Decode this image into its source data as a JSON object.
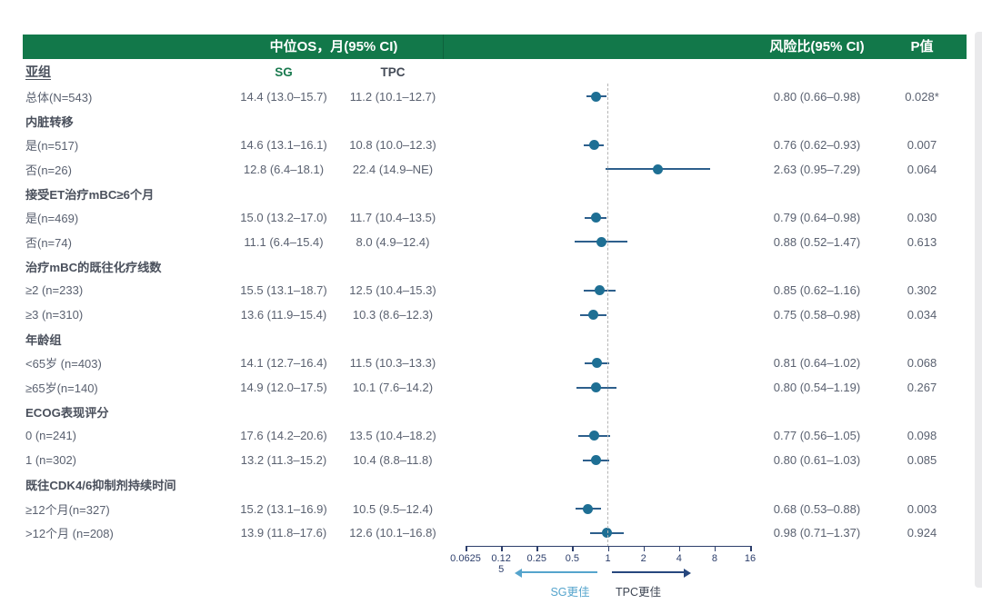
{
  "table_headers": {
    "os_header": "中位OS，月(95% CI)",
    "hr_header": "风险比(95% CI)",
    "p_header": "P值",
    "subgroup_header": "亚组",
    "sg_col": "SG",
    "tpc_col": "TPC"
  },
  "colors": {
    "header_green": "#12784a",
    "sg_label_green": "#1a7a4f",
    "marker_teal": "#1e6f94",
    "ci_line_blue": "#2d5f8c",
    "axis_navy": "#2c3e6b",
    "sg_arrow_light_blue": "#55a4cc",
    "tpc_arrow_dark_blue": "#27477e",
    "body_text": "#5a6170"
  },
  "chart_data": {
    "type": "scatter",
    "subtype": "forest-plot",
    "x_scale": "log2",
    "xlim": [
      0.0625,
      16
    ],
    "x_ticks": [
      0.0625,
      0.125,
      0.25,
      0.5,
      1,
      2,
      4,
      8,
      16
    ],
    "tick_label_lines": [
      [
        "0.0625"
      ],
      [
        "0.12",
        "5"
      ],
      [
        "0.25"
      ],
      [
        "0.5"
      ],
      [
        "1"
      ],
      [
        "2"
      ],
      [
        "4"
      ],
      [
        "8"
      ],
      [
        "16"
      ]
    ],
    "reference_line": 1,
    "legend": {
      "left_arrow": "SG更佳",
      "right_arrow": "TPC更佳"
    },
    "rows": [
      {
        "type": "data",
        "label": "总体(N=543)",
        "sg": "14.4 (13.0–15.7)",
        "tpc": "11.2 (10.1–12.7)",
        "hr": 0.8,
        "lo": 0.66,
        "hi": 0.98,
        "hr_text": "0.80 (0.66–0.98)",
        "p": "0.028*"
      },
      {
        "type": "section",
        "label": "内脏转移"
      },
      {
        "type": "data",
        "label": "是(n=517)",
        "sg": "14.6 (13.1–16.1)",
        "tpc": "10.8 (10.0–12.3)",
        "hr": 0.76,
        "lo": 0.62,
        "hi": 0.93,
        "hr_text": "0.76 (0.62–0.93)",
        "p": "0.007"
      },
      {
        "type": "data",
        "label": "否(n=26)",
        "sg": "12.8 (6.4–18.1)",
        "tpc": "22.4 (14.9–NE)",
        "hr": 2.63,
        "lo": 0.95,
        "hi": 7.29,
        "hr_text": "2.63 (0.95–7.29)",
        "p": "0.064"
      },
      {
        "type": "section",
        "label": "接受ET治疗mBC≥6个月"
      },
      {
        "type": "data",
        "label": "是(n=469)",
        "sg": "15.0 (13.2–17.0)",
        "tpc": "11.7 (10.4–13.5)",
        "hr": 0.79,
        "lo": 0.64,
        "hi": 0.98,
        "hr_text": "0.79 (0.64–0.98)",
        "p": "0.030"
      },
      {
        "type": "data",
        "label": "否(n=74)",
        "sg": "11.1 (6.4–15.4)",
        "tpc": "8.0 (4.9–12.4)",
        "hr": 0.88,
        "lo": 0.52,
        "hi": 1.47,
        "hr_text": "0.88 (0.52–1.47)",
        "p": "0.613"
      },
      {
        "type": "section",
        "label": "治疗mBC的既往化疗线数"
      },
      {
        "type": "data",
        "label": "≥2 (n=233)",
        "sg": "15.5 (13.1–18.7)",
        "tpc": "12.5 (10.4–15.3)",
        "hr": 0.85,
        "lo": 0.62,
        "hi": 1.16,
        "hr_text": "0.85 (0.62–1.16)",
        "p": "0.302"
      },
      {
        "type": "data",
        "label": "≥3 (n=310)",
        "sg": "13.6 (11.9–15.4)",
        "tpc": "10.3 (8.6–12.3)",
        "hr": 0.75,
        "lo": 0.58,
        "hi": 0.98,
        "hr_text": "0.75 (0.58–0.98)",
        "p": "0.034"
      },
      {
        "type": "section",
        "label": "年龄组"
      },
      {
        "type": "data",
        "label": "<65岁 (n=403)",
        "sg": "14.1 (12.7–16.4)",
        "tpc": "11.5 (10.3–13.3)",
        "hr": 0.81,
        "lo": 0.64,
        "hi": 1.02,
        "hr_text": "0.81 (0.64–1.02)",
        "p": "0.068"
      },
      {
        "type": "data",
        "label": "≥65岁(n=140)",
        "sg": "14.9 (12.0–17.5)",
        "tpc": "10.1 (7.6–14.2)",
        "hr": 0.8,
        "lo": 0.54,
        "hi": 1.19,
        "hr_text": "0.80 (0.54–1.19)",
        "p": "0.267"
      },
      {
        "type": "section",
        "label": "ECOG表现评分"
      },
      {
        "type": "data",
        "label": "0 (n=241)",
        "sg": "17.6 (14.2–20.6)",
        "tpc": "13.5 (10.4–18.2)",
        "hr": 0.77,
        "lo": 0.56,
        "hi": 1.05,
        "hr_text": "0.77 (0.56–1.05)",
        "p": "0.098"
      },
      {
        "type": "data",
        "label": "1 (n=302)",
        "sg": "13.2 (11.3–15.2)",
        "tpc": "10.4 (8.8–11.8)",
        "hr": 0.8,
        "lo": 0.61,
        "hi": 1.03,
        "hr_text": "0.80 (0.61–1.03)",
        "p": "0.085"
      },
      {
        "type": "section",
        "label": "既往CDK4/6抑制剂持续时间"
      },
      {
        "type": "data",
        "label": "≥12个月(n=327)",
        "sg": "15.2 (13.1–16.9)",
        "tpc": "10.5 (9.5–12.4)",
        "hr": 0.68,
        "lo": 0.53,
        "hi": 0.88,
        "hr_text": "0.68 (0.53–0.88)",
        "p": "0.003"
      },
      {
        "type": "data",
        "label": ">12个月 (n=208)",
        "sg": "13.9 (11.8–17.6)",
        "tpc": "12.6 (10.1–16.8)",
        "hr": 0.98,
        "lo": 0.71,
        "hi": 1.37,
        "hr_text": "0.98 (0.71–1.37)",
        "p": "0.924"
      }
    ]
  }
}
